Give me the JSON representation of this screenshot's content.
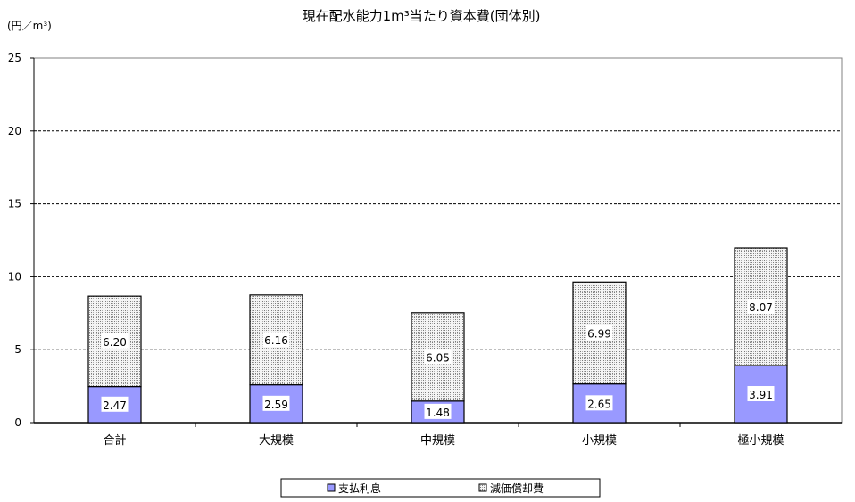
{
  "chart_data": {
    "type": "bar",
    "stacked": true,
    "title": "現在配水能力1m³当たり資本費(団体別)",
    "yunit": "(円／m³)",
    "ylim": [
      0,
      25
    ],
    "yticks": [
      0,
      5,
      10,
      15,
      20,
      25
    ],
    "grid": true,
    "legend_position": "bottom",
    "categories": [
      "合計",
      "大規模",
      "中規模",
      "小規模",
      "極小規模"
    ],
    "series": [
      {
        "name": "支払利息",
        "values": [
          2.47,
          2.59,
          1.48,
          2.65,
          3.91
        ],
        "labels": [
          "2.47",
          "2.59",
          "1.48",
          "2.65",
          "3.91"
        ],
        "color": "#9999ff"
      },
      {
        "name": "減価償却費",
        "values": [
          6.2,
          6.16,
          6.05,
          6.99,
          8.07
        ],
        "labels": [
          "6.20",
          "6.16",
          "6.05",
          "6.99",
          "8.07"
        ],
        "color": "#e0e0e0",
        "pattern": "crosshatch"
      }
    ]
  }
}
